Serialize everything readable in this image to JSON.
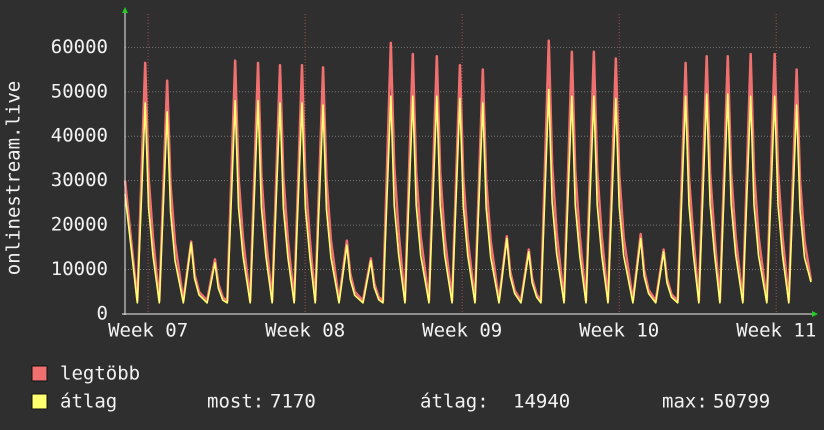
{
  "chart_data": {
    "type": "line",
    "ylabel": "onlinestream.live",
    "xlim": [
      -1.03,
      29.55
    ],
    "xticks": [
      {
        "value": 0,
        "label": "Week 07"
      },
      {
        "value": 7,
        "label": "Week 08"
      },
      {
        "value": 14,
        "label": "Week 09"
      },
      {
        "value": 21,
        "label": "Week 10"
      },
      {
        "value": 28,
        "label": "Week 11"
      }
    ],
    "ylim": [
      0,
      67500
    ],
    "yticks": [
      0,
      10000,
      20000,
      30000,
      40000,
      50000,
      60000
    ],
    "grid": true,
    "x": [
      -1.03,
      -0.48,
      -0.13,
      0.02,
      0.22,
      0.5,
      0.85,
      1.0,
      1.2,
      1.57,
      1.92,
      2.07,
      2.27,
      2.63,
      2.98,
      3.13,
      3.33,
      3.53,
      3.88,
      4.03,
      4.23,
      4.55,
      4.9,
      5.05,
      5.25,
      5.53,
      5.88,
      6.03,
      6.23,
      6.51,
      6.86,
      7.01,
      7.21,
      7.45,
      7.8,
      7.95,
      8.15,
      8.51,
      8.86,
      9.01,
      9.21,
      9.58,
      9.93,
      10.08,
      10.28,
      10.47,
      10.82,
      10.97,
      11.17,
      11.45,
      11.8,
      11.95,
      12.15,
      12.52,
      12.87,
      13.02,
      13.22,
      13.55,
      13.9,
      14.05,
      14.25,
      14.57,
      14.92,
      15.07,
      15.27,
      15.64,
      15.99,
      16.14,
      16.34,
      16.62,
      16.97,
      17.12,
      17.32,
      17.51,
      17.86,
      18.01,
      18.21,
      18.54,
      18.89,
      19.04,
      19.24,
      19.52,
      19.87,
      20.02,
      20.22,
      20.5,
      20.85,
      21.0,
      21.2,
      21.61,
      21.96,
      22.11,
      22.31,
      22.63,
      22.98,
      23.13,
      23.33,
      23.61,
      23.96,
      24.11,
      24.31,
      24.55,
      24.9,
      25.05,
      25.25,
      25.49,
      25.84,
      25.99,
      26.19,
      26.51,
      26.86,
      27.01,
      27.21,
      27.58,
      27.93,
      28.08,
      28.28,
      28.56,
      28.91,
      29.06,
      29.26,
      29.55
    ],
    "series": [
      {
        "name": "legtöbb",
        "color": "#f07070",
        "values": [
          30000,
          3000,
          56500,
          31000,
          17000,
          3000,
          52500,
          29000,
          16000,
          3000,
          16300,
          9000,
          5000,
          3000,
          12300,
          6800,
          3700,
          3000,
          57000,
          31000,
          17000,
          3000,
          56500,
          31000,
          17000,
          3000,
          56000,
          30800,
          16800,
          3000,
          56000,
          30800,
          16800,
          3000,
          55500,
          30500,
          16600,
          3000,
          16500,
          9100,
          5000,
          3000,
          12500,
          6900,
          3800,
          3000,
          61000,
          33500,
          18300,
          3000,
          58500,
          32000,
          17500,
          3000,
          58000,
          32000,
          17400,
          3000,
          56000,
          30800,
          16800,
          3000,
          55000,
          30200,
          16500,
          3000,
          17500,
          9600,
          5300,
          3000,
          14500,
          8000,
          4400,
          3000,
          61500,
          33800,
          18400,
          3000,
          59000,
          32400,
          17700,
          3000,
          59000,
          32400,
          17700,
          3000,
          57500,
          31600,
          17200,
          3000,
          18000,
          9900,
          5400,
          3000,
          14500,
          8000,
          4400,
          3000,
          56500,
          31000,
          17000,
          3000,
          58000,
          31900,
          17400,
          3000,
          58000,
          31900,
          17400,
          3000,
          58500,
          32200,
          17500,
          3000,
          58500,
          32200,
          17500,
          3000,
          55000,
          30200,
          16500,
          7500
        ]
      },
      {
        "name": "átlag",
        "color": "#ffff70",
        "values": [
          27000,
          2500,
          47500,
          24000,
          13000,
          2500,
          45500,
          23000,
          12000,
          2500,
          16000,
          8000,
          4300,
          2500,
          11500,
          5800,
          3100,
          2500,
          48000,
          24000,
          13000,
          2500,
          48000,
          24000,
          13000,
          2500,
          47500,
          23800,
          12800,
          2500,
          47500,
          23800,
          12800,
          2500,
          47000,
          23500,
          12700,
          2500,
          15500,
          7800,
          4200,
          2500,
          12000,
          6000,
          3200,
          2500,
          49000,
          24500,
          13200,
          2500,
          49000,
          24500,
          13200,
          2500,
          49000,
          24500,
          13200,
          2500,
          48500,
          24200,
          13100,
          2500,
          47500,
          23800,
          12800,
          2500,
          17000,
          8500,
          4600,
          2500,
          14000,
          7000,
          3800,
          2500,
          50500,
          25200,
          13600,
          2500,
          49000,
          24500,
          13200,
          2500,
          49000,
          24500,
          13200,
          2500,
          48500,
          24200,
          13100,
          2500,
          17000,
          8500,
          4600,
          2500,
          14000,
          7000,
          3800,
          2500,
          49000,
          24500,
          13200,
          2500,
          49500,
          24800,
          13400,
          2500,
          49500,
          24800,
          13400,
          2500,
          49000,
          24500,
          13200,
          2500,
          49000,
          24500,
          13200,
          2500,
          47000,
          23500,
          12700,
          7170
        ]
      }
    ],
    "stats": [
      {
        "label": "most:",
        "value": 7170
      },
      {
        "label": "átlag:",
        "value": 14940
      },
      {
        "label": "max:",
        "value": 50799
      }
    ]
  }
}
